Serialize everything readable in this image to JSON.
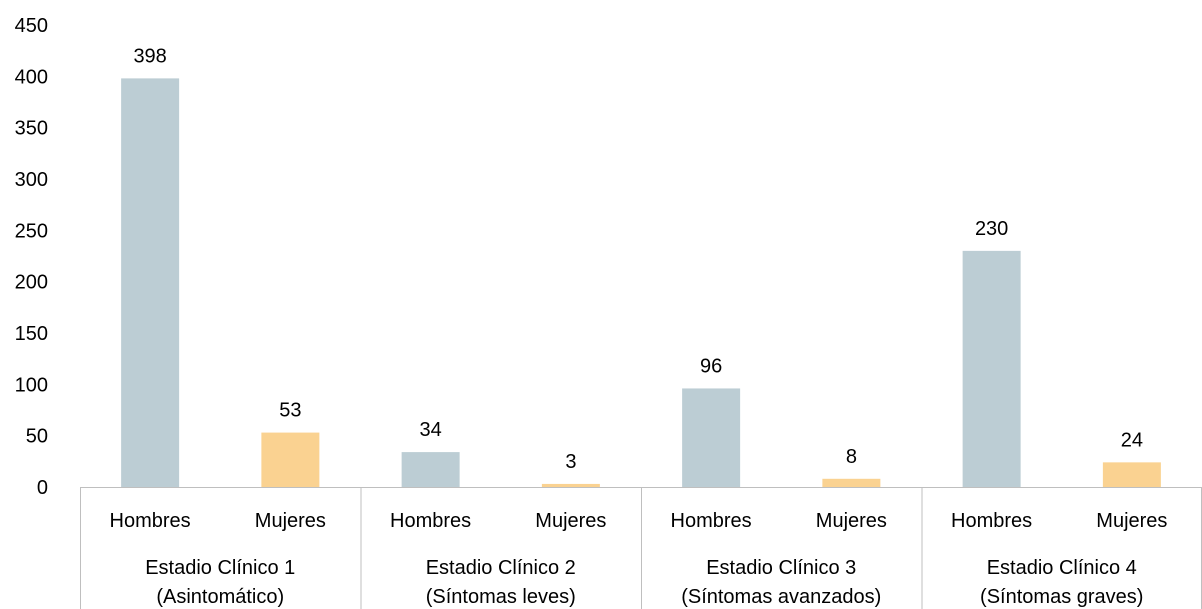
{
  "chart_data": {
    "type": "bar",
    "ylim": [
      0,
      450
    ],
    "yticks": [
      0,
      50,
      100,
      150,
      200,
      250,
      300,
      350,
      400,
      450
    ],
    "grid": false,
    "groups": [
      {
        "label_lines": [
          "Estadio Clínico 1",
          "(Asintomático)"
        ],
        "bars": [
          {
            "sub": "Hombres",
            "value": 398,
            "color": "#bccdd4"
          },
          {
            "sub": "Mujeres",
            "value": 53,
            "color": "#fad291"
          }
        ]
      },
      {
        "label_lines": [
          "Estadio Clínico 2",
          "(Síntomas leves)"
        ],
        "bars": [
          {
            "sub": "Hombres",
            "value": 34,
            "color": "#bccdd4"
          },
          {
            "sub": "Mujeres",
            "value": 3,
            "color": "#fad291"
          }
        ]
      },
      {
        "label_lines": [
          "Estadio Clínico 3",
          "(Síntomas avanzados)"
        ],
        "bars": [
          {
            "sub": "Hombres",
            "value": 96,
            "color": "#bccdd4"
          },
          {
            "sub": "Mujeres",
            "value": 8,
            "color": "#fad291"
          }
        ]
      },
      {
        "label_lines": [
          "Estadio Clínico 4",
          "(Síntomas graves)"
        ],
        "bars": [
          {
            "sub": "Hombres",
            "value": 230,
            "color": "#bccdd4"
          },
          {
            "sub": "Mujeres",
            "value": 24,
            "color": "#fad291"
          }
        ]
      }
    ],
    "colors": {
      "hombres": "#bccdd4",
      "mujeres": "#fad291",
      "axis": "#bfbfbf"
    }
  }
}
